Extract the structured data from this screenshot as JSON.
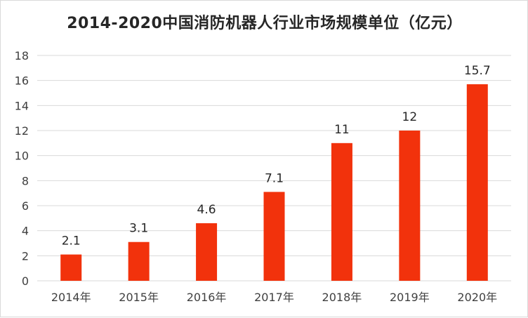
{
  "chart_data": {
    "type": "bar",
    "title": "2014-2020中国消防机器人行业市场规模单位（亿元）",
    "categories": [
      "2014年",
      "2015年",
      "2016年",
      "2017年",
      "2018年",
      "2019年",
      "2020年"
    ],
    "values": [
      2.1,
      3.1,
      4.6,
      7.1,
      11,
      12,
      15.7
    ],
    "value_labels": [
      "2.1",
      "3.1",
      "4.6",
      "7.1",
      "11",
      "12",
      "15.7"
    ],
    "ylim": [
      0,
      18
    ],
    "yticks": [
      "0",
      "2",
      "4",
      "6",
      "8",
      "10",
      "12",
      "14",
      "16",
      "18"
    ],
    "xlabel": "",
    "ylabel": "",
    "grid": true,
    "bar_color": "#f2320c",
    "legend": "none"
  }
}
